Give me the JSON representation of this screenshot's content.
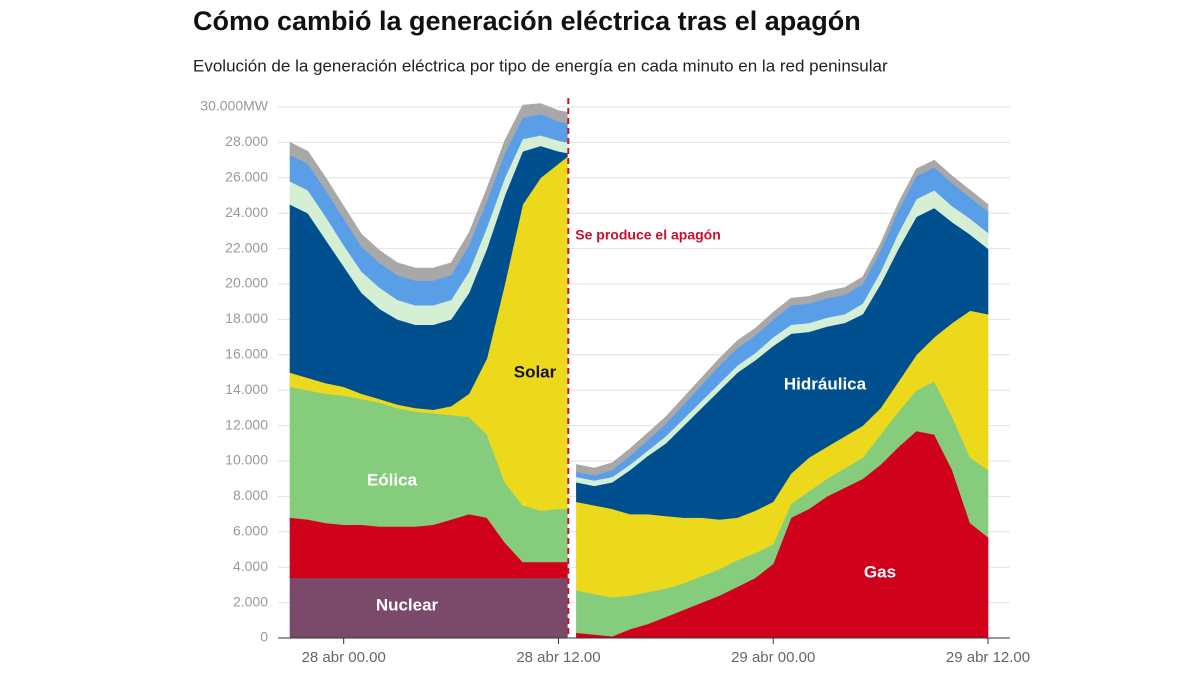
{
  "chart_data": {
    "type": "stacked_area",
    "title": "Cómo cambió la generación eléctrica tras el apagón",
    "subtitle": "Evolución de la generación eléctrica por tipo de energía en cada minuto en la red peninsular",
    "x": [
      -3,
      -2,
      -1,
      0,
      1,
      2,
      3,
      4,
      5,
      6,
      7,
      8,
      9,
      10,
      11,
      12,
      12.5,
      12.6,
      13,
      14,
      15,
      16,
      17,
      18,
      19,
      20,
      21,
      22,
      23,
      24,
      25,
      26,
      27,
      28,
      29,
      30,
      31,
      32,
      33,
      34,
      35,
      36
    ],
    "xlim": [
      -3,
      36
    ],
    "xticks": [
      {
        "value": 0,
        "label": "28 abr 00.00"
      },
      {
        "value": 12,
        "label": "28 abr 12.00"
      },
      {
        "value": 24,
        "label": "29 abr 00.00"
      },
      {
        "value": 36,
        "label": "29 abr 12.00"
      }
    ],
    "ylim": [
      0,
      30000
    ],
    "yticks": [
      0,
      {
        "value": 2000,
        "label": "2.000"
      },
      {
        "value": 4000,
        "label": "4.000"
      },
      {
        "value": 6000,
        "label": "6.000"
      },
      {
        "value": 8000,
        "label": "8.000"
      },
      {
        "value": 10000,
        "label": "10.000"
      },
      {
        "value": 12000,
        "label": "12.000"
      },
      {
        "value": 14000,
        "label": "14.000"
      },
      {
        "value": 16000,
        "label": "16.000"
      },
      {
        "value": 18000,
        "label": "18.000"
      },
      {
        "value": 20000,
        "label": "20.000"
      },
      {
        "value": 22000,
        "label": "22.000"
      },
      {
        "value": 24000,
        "label": "24.000"
      },
      {
        "value": 26000,
        "label": "26.000"
      },
      {
        "value": 28000,
        "label": "28.000"
      },
      {
        "value": 30000,
        "label": "30.000MW"
      }
    ],
    "grid": true,
    "annotation": {
      "text": "Se produce el apagón",
      "x": 12.55,
      "color": "#c8102e"
    },
    "series": [
      {
        "name": "Nuclear",
        "color": "#7b4a6a",
        "values": [
          3400,
          3400,
          3400,
          3400,
          3400,
          3400,
          3400,
          3400,
          3400,
          3400,
          3400,
          3400,
          3400,
          3400,
          3400,
          3400,
          3400,
          null,
          0,
          0,
          0,
          0,
          0,
          0,
          0,
          0,
          0,
          0,
          0,
          0,
          0,
          0,
          0,
          0,
          0,
          0,
          0,
          0,
          0,
          0,
          0,
          0
        ]
      },
      {
        "name": "Gas",
        "color": "#d0021b",
        "values": [
          3400,
          3300,
          3100,
          3000,
          3000,
          2900,
          2900,
          2900,
          3000,
          3300,
          3600,
          3400,
          2000,
          900,
          900,
          900,
          900,
          null,
          300,
          200,
          100,
          500,
          800,
          1200,
          1600,
          2000,
          2400,
          2900,
          3400,
          4200,
          6800,
          7300,
          8000,
          8500,
          9000,
          9800,
          10800,
          11700,
          11500,
          9500,
          6500,
          5700
        ]
      },
      {
        "name": "Eólica",
        "color": "#86cc7d",
        "values": [
          7400,
          7300,
          7300,
          7300,
          7100,
          7000,
          6700,
          6500,
          6300,
          5900,
          5500,
          4700,
          3400,
          3200,
          2900,
          3000,
          3000,
          null,
          2400,
          2300,
          2200,
          1900,
          1800,
          1600,
          1500,
          1500,
          1500,
          1500,
          1400,
          1100,
          800,
          1000,
          1000,
          1100,
          1200,
          1700,
          2000,
          2300,
          3000,
          3000,
          3700,
          3800
        ]
      },
      {
        "name": "Solar",
        "color": "#ecd91c",
        "values": [
          800,
          700,
          600,
          500,
          300,
          200,
          200,
          200,
          200,
          500,
          1300,
          4300,
          11200,
          17000,
          18800,
          19500,
          19900,
          null,
          5000,
          5000,
          5000,
          4600,
          4400,
          4100,
          3700,
          3300,
          2800,
          2400,
          2400,
          2400,
          1700,
          1900,
          1800,
          1800,
          1800,
          1500,
          1700,
          2000,
          2500,
          5300,
          8300,
          8800
        ]
      },
      {
        "name": "Hidráulica",
        "color": "#00508f",
        "values": [
          9500,
          9300,
          8100,
          6800,
          5700,
          5100,
          4800,
          4700,
          4800,
          4900,
          5700,
          6200,
          5000,
          3000,
          1800,
          700,
          200,
          null,
          1100,
          1100,
          1500,
          2500,
          3300,
          4100,
          5200,
          6200,
          7300,
          8200,
          8500,
          8800,
          7900,
          7100,
          6800,
          6400,
          6300,
          7000,
          7500,
          7800,
          7300,
          5700,
          4300,
          3700
        ]
      },
      {
        "color": "#d5efd5",
        "values": [
          1300,
          1300,
          1300,
          1200,
          1200,
          1200,
          1100,
          1100,
          1100,
          1100,
          1200,
          1200,
          1000,
          700,
          600,
          600,
          600,
          null,
          300,
          300,
          300,
          300,
          300,
          400,
          400,
          400,
          400,
          400,
          400,
          500,
          500,
          500,
          500,
          500,
          600,
          700,
          900,
          1000,
          1000,
          900,
          900,
          900
        ]
      },
      {
        "color": "#5b9ee8",
        "values": [
          1500,
          1500,
          1500,
          1500,
          1400,
          1400,
          1400,
          1400,
          1400,
          1400,
          1500,
          1500,
          1400,
          1200,
          1200,
          1100,
          1100,
          null,
          300,
          300,
          400,
          500,
          600,
          700,
          800,
          900,
          1000,
          1000,
          1000,
          1000,
          1100,
          1100,
          1100,
          1100,
          1100,
          1200,
          1300,
          1300,
          1300,
          1300,
          1200,
          1200
        ]
      },
      {
        "color": "#a8a8a8",
        "values": [
          700,
          700,
          700,
          700,
          700,
          700,
          700,
          700,
          700,
          700,
          700,
          700,
          700,
          700,
          600,
          600,
          600,
          null,
          400,
          400,
          400,
          400,
          400,
          400,
          400,
          400,
          400,
          400,
          400,
          400,
          400,
          400,
          400,
          400,
          400,
          400,
          400,
          400,
          400,
          400,
          400,
          400
        ]
      }
    ]
  }
}
